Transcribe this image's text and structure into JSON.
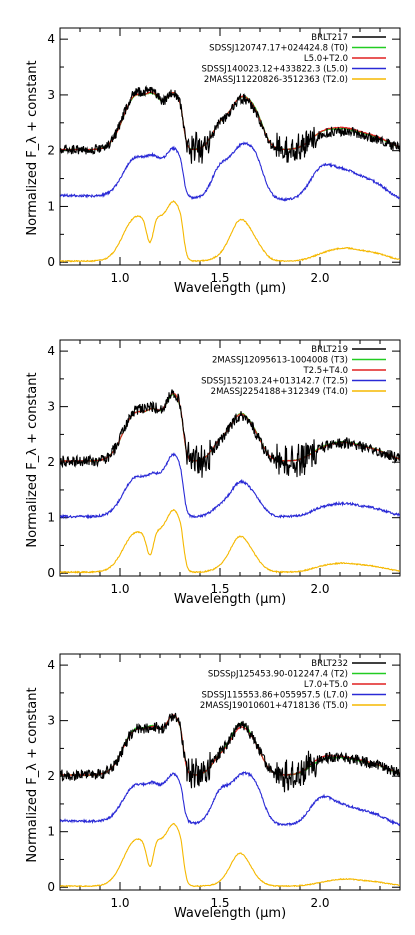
{
  "chart_data": [
    {
      "type": "line",
      "xlabel": "Wavelength (μm)",
      "ylabel": "Normalized F_λ + constant",
      "xlim": [
        0.7,
        2.4
      ],
      "ylim": [
        -0.05,
        4.2
      ],
      "xticks": [
        1.0,
        1.5,
        2.0
      ],
      "yticks": [
        0,
        1,
        2,
        3,
        4
      ],
      "legend_position": "top-right",
      "series": [
        {
          "name": "BRLT217",
          "color": "#000000",
          "offset": 2,
          "peaks": [
            1.0,
            0.98,
            0.38,
            0.45,
            0.8,
            0.15,
            0.3
          ],
          "noise": 0.09,
          "variant": "T"
        },
        {
          "name": "SDSSJ120747.17+024424.8 (T0)",
          "color": "#22cc22",
          "offset": 2,
          "peaks": [
            0.95,
            1.0,
            0.4,
            0.5,
            0.82,
            0.18,
            0.34
          ],
          "noise": 0.01,
          "variant": "T"
        },
        {
          "name": "L5.0+T2.0",
          "color": "#e02020",
          "offset": 2,
          "peaks": [
            0.96,
            1.0,
            0.4,
            0.48,
            0.83,
            0.18,
            0.36
          ],
          "noise": 0.008,
          "variant": "T"
        },
        {
          "name": "SDSSJ140023.12+433822.3 (L5.0)",
          "color": "#2a2ad6",
          "offset": 1,
          "peaks": [
            0.82,
            1.02,
            0.6,
            0.7,
            0.98,
            0.48,
            0.6
          ],
          "noise": 0.02,
          "variant": "L"
        },
        {
          "name": "2MASSJ11220826-3512363 (T2.0)",
          "color": "#f5b800",
          "offset": 0,
          "peaks": [
            0.78,
            1.05,
            0.05,
            0.22,
            0.7,
            0.05,
            0.22
          ],
          "noise": 0.01,
          "variant": "T2"
        }
      ]
    },
    {
      "type": "line",
      "xlabel": "Wavelength (μm)",
      "ylabel": "Normalized F_λ + constant",
      "xlim": [
        0.7,
        2.4
      ],
      "ylim": [
        -0.05,
        4.2
      ],
      "xticks": [
        1.0,
        1.5,
        2.0
      ],
      "yticks": [
        0,
        1,
        2,
        3,
        4
      ],
      "legend_position": "top-right",
      "series": [
        {
          "name": "BRLT219",
          "color": "#000000",
          "offset": 2,
          "peaks": [
            0.9,
            1.2,
            0.28,
            0.3,
            0.75,
            0.1,
            0.3
          ],
          "noise": 0.1,
          "variant": "T"
        },
        {
          "name": "2MASSJ12095613-1004008 (T3)",
          "color": "#22cc22",
          "offset": 2,
          "peaks": [
            0.86,
            1.18,
            0.3,
            0.32,
            0.78,
            0.12,
            0.32
          ],
          "noise": 0.008,
          "variant": "T"
        },
        {
          "name": "T2.5+T4.0",
          "color": "#e02020",
          "offset": 2,
          "peaks": [
            0.86,
            1.2,
            0.3,
            0.31,
            0.77,
            0.11,
            0.31
          ],
          "noise": 0.008,
          "variant": "T"
        },
        {
          "name": "SDSSJ152103.24+013142.7 (T2.5)",
          "color": "#2a2ad6",
          "offset": 1,
          "peaks": [
            0.7,
            1.1,
            0.15,
            0.22,
            0.58,
            0.08,
            0.22
          ],
          "noise": 0.02,
          "variant": "T"
        },
        {
          "name": "2MASSJ2254188+312349 (T4.0)",
          "color": "#f5b800",
          "offset": 0,
          "peaks": [
            0.7,
            1.1,
            0.05,
            0.12,
            0.62,
            0.05,
            0.15
          ],
          "noise": 0.01,
          "variant": "T2"
        }
      ]
    },
    {
      "type": "line",
      "xlabel": "Wavelength (μm)",
      "ylabel": "Normalized F_λ + constant",
      "xlim": [
        0.7,
        2.4
      ],
      "ylim": [
        -0.05,
        4.2
      ],
      "xticks": [
        1.0,
        1.5,
        2.0
      ],
      "yticks": [
        0,
        1,
        2,
        3,
        4
      ],
      "legend_position": "top-right",
      "series": [
        {
          "name": "BRLT232",
          "color": "#000000",
          "offset": 2,
          "peaks": [
            0.8,
            1.05,
            0.3,
            0.35,
            0.8,
            0.18,
            0.28
          ],
          "noise": 0.1,
          "variant": "T"
        },
        {
          "name": "SDSSpJ125453.90-012247.4 (T2)",
          "color": "#22cc22",
          "offset": 2,
          "peaks": [
            0.82,
            1.05,
            0.28,
            0.34,
            0.85,
            0.16,
            0.28
          ],
          "noise": 0.01,
          "variant": "T"
        },
        {
          "name": "L7.0+T5.0",
          "color": "#e02020",
          "offset": 2,
          "peaks": [
            0.8,
            1.06,
            0.28,
            0.35,
            0.78,
            0.2,
            0.3
          ],
          "noise": 0.008,
          "variant": "T"
        },
        {
          "name": "SDSSJ115553.86+055957.5 (L7.0)",
          "color": "#2a2ad6",
          "offset": 1,
          "peaks": [
            0.78,
            1.02,
            0.62,
            0.65,
            0.9,
            0.45,
            0.4
          ],
          "noise": 0.02,
          "variant": "L"
        },
        {
          "name": "2MASSJ19010601+4718136 (T5.0)",
          "color": "#f5b800",
          "offset": 0,
          "peaks": [
            0.82,
            1.1,
            0.02,
            0.05,
            0.58,
            0.02,
            0.12
          ],
          "noise": 0.008,
          "variant": "T2"
        }
      ]
    }
  ]
}
